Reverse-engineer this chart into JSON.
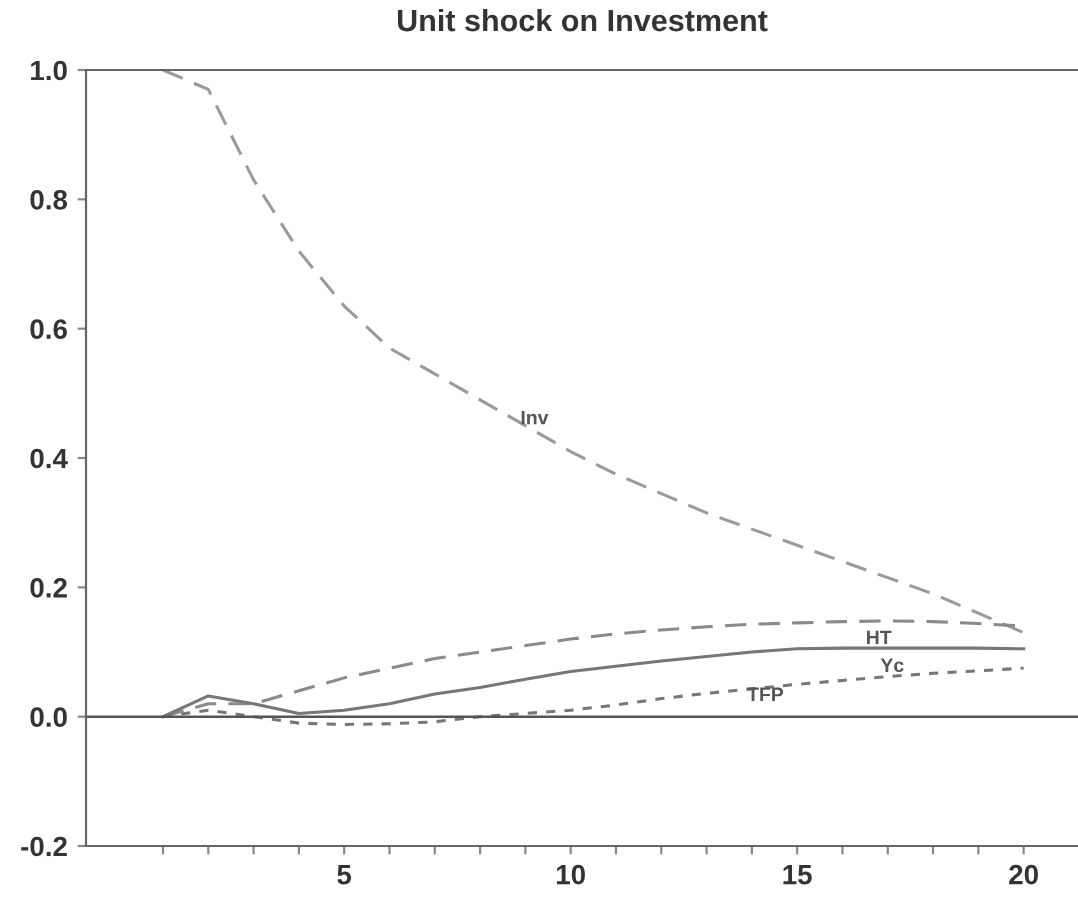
{
  "chart_data": {
    "type": "line",
    "title": "Unit shock on Investment",
    "x": [
      1,
      2,
      3,
      4,
      5,
      6,
      7,
      8,
      9,
      10,
      11,
      12,
      13,
      14,
      15,
      16,
      17,
      18,
      19,
      20
    ],
    "xlim": [
      -0.7,
      21.2
    ],
    "xticks": [
      {
        "value": 1,
        "label": null
      },
      {
        "value": 2,
        "label": null
      },
      {
        "value": 3,
        "label": null
      },
      {
        "value": 4,
        "label": null
      },
      5,
      {
        "value": 6,
        "label": null
      },
      {
        "value": 7,
        "label": null
      },
      {
        "value": 8,
        "label": null
      },
      {
        "value": 9,
        "label": null
      },
      10,
      {
        "value": 11,
        "label": null
      },
      {
        "value": 12,
        "label": null
      },
      {
        "value": 13,
        "label": null
      },
      {
        "value": 14,
        "label": null
      },
      15,
      {
        "value": 16,
        "label": null
      },
      {
        "value": 17,
        "label": null
      },
      {
        "value": 18,
        "label": null
      },
      {
        "value": 19,
        "label": null
      },
      20
    ],
    "ylim": [
      -0.2,
      1.0
    ],
    "yticks": [
      {
        "value": -0.2,
        "label": "-0.2"
      },
      {
        "value": 0,
        "label": "0.0"
      },
      {
        "value": 0.2,
        "label": "0.2"
      },
      {
        "value": 0.4,
        "label": "0.4"
      },
      {
        "value": 0.6,
        "label": "0.6"
      },
      {
        "value": 0.8,
        "label": "0.8"
      },
      {
        "value": 1,
        "label": "1.0"
      }
    ],
    "grid": false,
    "ref_lines": [
      {
        "axis": "y",
        "value": 0,
        "color": "#555555"
      }
    ],
    "series": [
      {
        "color": "#9a9a9a",
        "line_style": "dashed",
        "values": [
          1.0,
          0.97,
          0.83,
          0.72,
          0.635,
          0.57,
          0.53,
          0.49,
          0.45,
          0.41,
          0.375,
          0.345,
          0.315,
          0.29,
          0.265,
          0.24,
          0.215,
          0.19,
          0.16,
          0.13
        ]
      },
      {
        "color": "#8a8a8a",
        "line_style": "dashed",
        "values": [
          0,
          0.02,
          0.02,
          0.04,
          0.06,
          0.075,
          0.09,
          0.1,
          0.11,
          0.12,
          0.128,
          0.134,
          0.139,
          0.143,
          0.145,
          0.147,
          0.148,
          0.147,
          0.144,
          0.14
        ]
      },
      {
        "color": "#777777",
        "line_style": "solid",
        "values": [
          0,
          0.032,
          0.02,
          0.005,
          0.01,
          0.02,
          0.035,
          0.045,
          0.058,
          0.07,
          0.078,
          0.086,
          0.093,
          0.1,
          0.105,
          0.106,
          0.106,
          0.106,
          0.106,
          0.105
        ]
      },
      {
        "color": "#777777",
        "line_style": "dotted",
        "values": [
          0,
          0.01,
          0.0,
          -0.01,
          -0.012,
          -0.011,
          -0.008,
          0.0,
          0.005,
          0.01,
          0.018,
          0.028,
          0.036,
          0.043,
          0.05,
          0.056,
          0.062,
          0.067,
          0.071,
          0.075
        ]
      }
    ],
    "annotations": [
      {
        "text": "Inv",
        "x": 9.2,
        "y": 0.46
      },
      {
        "text": "HT",
        "x": 16.8,
        "y": 0.12
      },
      {
        "text": "Yc",
        "x": 17.1,
        "y": 0.077
      },
      {
        "text": "TFP",
        "x": 14.3,
        "y": 0.032
      }
    ]
  }
}
